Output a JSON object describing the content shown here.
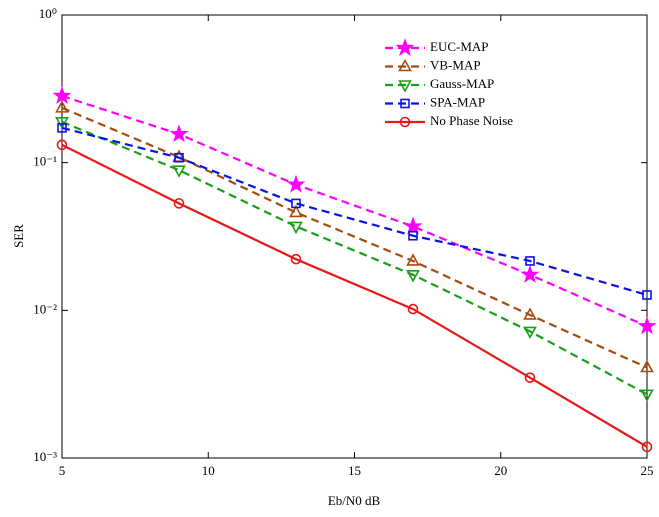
{
  "chart_data": {
    "type": "line",
    "xlabel": "Eb/N0 dB",
    "ylabel": "SER",
    "x": [
      5,
      9,
      13,
      17,
      21,
      25
    ],
    "xlim": [
      5,
      25
    ],
    "xticks": [
      5,
      10,
      15,
      20,
      25
    ],
    "ylim": [
      0.001,
      1
    ],
    "log_y": true,
    "yticks": [
      {
        "value": 1,
        "label": "10⁰"
      },
      {
        "value": 0.1,
        "label": "10⁻¹"
      },
      {
        "value": 0.01,
        "label": "10⁻²"
      },
      {
        "value": 0.001,
        "label": "10⁻³"
      }
    ],
    "legend": "upper right",
    "series": [
      {
        "name": "EUC-MAP",
        "color": "#ff00ff",
        "marker": "star",
        "dashed": true,
        "values": [
          0.283,
          0.156,
          0.071,
          0.037,
          0.0174,
          0.0078
        ]
      },
      {
        "name": "VB-MAP",
        "color": "#a84a10",
        "marker": "triangle-up",
        "dashed": true,
        "values": [
          0.235,
          0.109,
          0.046,
          0.0216,
          0.0093,
          0.0041
        ]
      },
      {
        "name": "Gauss-MAP",
        "color": "#18a018",
        "marker": "triangle-down",
        "dashed": true,
        "values": [
          0.189,
          0.089,
          0.037,
          0.0174,
          0.0072,
          0.0027
        ]
      },
      {
        "name": "SPA-MAP",
        "color": "#0a14e6",
        "marker": "square",
        "dashed": true,
        "values": [
          0.172,
          0.108,
          0.053,
          0.032,
          0.0216,
          0.0127
        ]
      },
      {
        "name": "No Phase Noise",
        "color": "#e81818",
        "marker": "circle",
        "dashed": false,
        "values": [
          0.132,
          0.053,
          0.0222,
          0.0102,
          0.0035,
          0.00119
        ]
      }
    ]
  }
}
